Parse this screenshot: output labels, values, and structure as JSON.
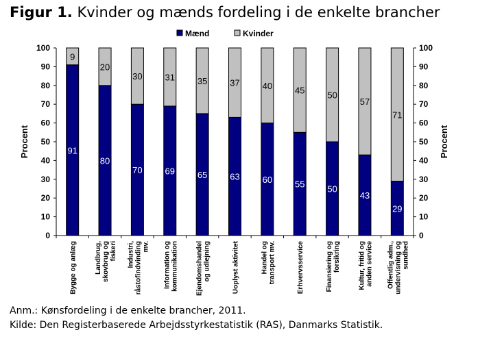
{
  "figure": {
    "label": "Figur 1.",
    "title": " Kvinder og mænds fordeling i de enkelte brancher"
  },
  "notes": {
    "anm": "Anm.: Kønsfordeling i de enkelte brancher, 2011.",
    "kilde": "Kilde: Den Registerbaserede Arbejdsstyrkestatistik (RAS), Danmarks Statistik."
  },
  "chart_data": {
    "type": "bar",
    "stacked": true,
    "categories": [
      [
        "Bygge og anlæg"
      ],
      [
        "Landbrug,",
        "skovbrug og",
        "fiskeri"
      ],
      [
        "Industri,",
        "råstofindvinding",
        "mv."
      ],
      [
        "Information og",
        "kommunikation"
      ],
      [
        "Ejendomshandel",
        "og udlejning"
      ],
      [
        "Uoplyst aktivitet"
      ],
      [
        "Handel og",
        "transport mv."
      ],
      [
        "Erhvervsservice"
      ],
      [
        "Finansiering og",
        "forsikring"
      ],
      [
        "Kultur, fritid og",
        "anden service"
      ],
      [
        "Offentlig adm.,",
        "undervisning og",
        "sundhed"
      ]
    ],
    "series": [
      {
        "name": "Mænd",
        "color": "#000080",
        "label_color": "#ffffff",
        "values": [
          91,
          80,
          70,
          69,
          65,
          63,
          60,
          55,
          50,
          43,
          29
        ]
      },
      {
        "name": "Kvinder",
        "color": "#c0c0c0",
        "label_color": "#000000",
        "values": [
          9,
          20,
          30,
          31,
          35,
          37,
          40,
          45,
          50,
          57,
          71
        ]
      }
    ],
    "ylabel_left": "Procent",
    "ylabel_right": "Procent",
    "ylim": [
      0,
      100
    ],
    "yticks": [
      0,
      10,
      20,
      30,
      40,
      50,
      60,
      70,
      80,
      90,
      100
    ],
    "legend_position": "top-center",
    "grid": false
  }
}
